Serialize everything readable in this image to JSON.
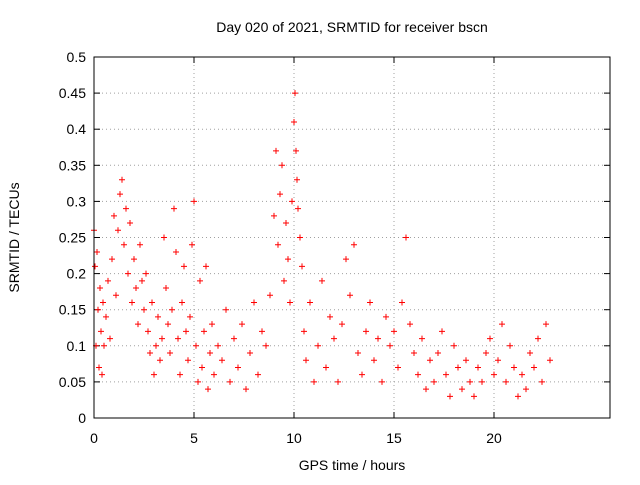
{
  "chart_data": {
    "type": "scatter",
    "title": "Day 020 of 2021, SRMTID for receiver bscn",
    "xlabel": "GPS time / hours",
    "ylabel": "SRMTID / TECUs",
    "xlim": [
      0,
      25.8
    ],
    "ylim": [
      0,
      0.5
    ],
    "x_ticks": [
      0,
      5,
      10,
      15,
      20
    ],
    "x_tick_labels": [
      "0",
      "5",
      "10",
      "15",
      "20"
    ],
    "y_ticks": [
      0,
      0.05,
      0.1,
      0.15,
      0.2,
      0.25,
      0.3,
      0.35,
      0.4,
      0.45,
      0.5
    ],
    "y_tick_labels": [
      "0",
      "0.05",
      "0.1",
      "0.15",
      "0.2",
      "0.25",
      "0.3",
      "0.35",
      "0.4",
      "0.45",
      "0.5"
    ],
    "grid": true,
    "marker": "+",
    "color": "#ff0000",
    "series": [
      {
        "name": "SRMTID",
        "x": [
          0.0,
          0.05,
          0.1,
          0.15,
          0.2,
          0.25,
          0.3,
          0.35,
          0.4,
          0.45,
          0.5,
          0.6,
          0.7,
          0.8,
          0.9,
          1.0,
          1.1,
          1.2,
          1.3,
          1.4,
          1.5,
          1.6,
          1.7,
          1.8,
          1.9,
          2.0,
          2.1,
          2.2,
          2.3,
          2.4,
          2.5,
          2.6,
          2.7,
          2.8,
          2.9,
          3.0,
          3.1,
          3.2,
          3.3,
          3.4,
          3.5,
          3.6,
          3.7,
          3.8,
          3.9,
          4.0,
          4.1,
          4.2,
          4.3,
          4.4,
          4.5,
          4.6,
          4.7,
          4.8,
          4.9,
          5.0,
          5.1,
          5.2,
          5.3,
          5.4,
          5.5,
          5.6,
          5.7,
          5.8,
          5.9,
          6.0,
          6.2,
          6.4,
          6.6,
          6.8,
          7.0,
          7.2,
          7.4,
          7.6,
          7.8,
          8.0,
          8.2,
          8.4,
          8.6,
          8.8,
          9.0,
          9.1,
          9.2,
          9.3,
          9.4,
          9.5,
          9.6,
          9.7,
          9.8,
          9.9,
          10.0,
          10.05,
          10.1,
          10.15,
          10.2,
          10.3,
          10.4,
          10.5,
          10.6,
          10.8,
          11.0,
          11.2,
          11.4,
          11.6,
          11.8,
          12.0,
          12.2,
          12.4,
          12.6,
          12.8,
          13.0,
          13.2,
          13.4,
          13.6,
          13.8,
          14.0,
          14.2,
          14.4,
          14.6,
          14.8,
          15.0,
          15.2,
          15.4,
          15.6,
          15.8,
          16.0,
          16.2,
          16.4,
          16.6,
          16.8,
          17.0,
          17.2,
          17.4,
          17.6,
          17.8,
          18.0,
          18.2,
          18.4,
          18.6,
          18.8,
          19.0,
          19.2,
          19.4,
          19.6,
          19.8,
          20.0,
          20.2,
          20.4,
          20.6,
          20.8,
          21.0,
          21.2,
          21.4,
          21.6,
          21.8,
          22.0,
          22.2,
          22.4,
          22.6,
          22.8
        ],
        "y": [
          0.26,
          0.21,
          0.1,
          0.23,
          0.15,
          0.07,
          0.18,
          0.12,
          0.06,
          0.16,
          0.1,
          0.14,
          0.19,
          0.11,
          0.22,
          0.28,
          0.17,
          0.26,
          0.31,
          0.33,
          0.24,
          0.29,
          0.2,
          0.27,
          0.16,
          0.22,
          0.18,
          0.13,
          0.24,
          0.19,
          0.15,
          0.2,
          0.12,
          0.09,
          0.16,
          0.06,
          0.1,
          0.14,
          0.08,
          0.11,
          0.25,
          0.18,
          0.13,
          0.09,
          0.15,
          0.29,
          0.23,
          0.11,
          0.06,
          0.16,
          0.21,
          0.12,
          0.08,
          0.14,
          0.24,
          0.3,
          0.1,
          0.05,
          0.19,
          0.07,
          0.12,
          0.21,
          0.04,
          0.09,
          0.13,
          0.06,
          0.1,
          0.08,
          0.15,
          0.05,
          0.11,
          0.07,
          0.13,
          0.04,
          0.09,
          0.16,
          0.06,
          0.12,
          0.1,
          0.17,
          0.28,
          0.37,
          0.24,
          0.31,
          0.35,
          0.19,
          0.27,
          0.22,
          0.16,
          0.3,
          0.41,
          0.45,
          0.37,
          0.33,
          0.29,
          0.25,
          0.21,
          0.12,
          0.08,
          0.16,
          0.05,
          0.1,
          0.19,
          0.07,
          0.14,
          0.11,
          0.05,
          0.13,
          0.22,
          0.17,
          0.24,
          0.09,
          0.06,
          0.12,
          0.16,
          0.08,
          0.11,
          0.05,
          0.14,
          0.1,
          0.12,
          0.07,
          0.16,
          0.25,
          0.13,
          0.09,
          0.06,
          0.11,
          0.04,
          0.08,
          0.05,
          0.09,
          0.12,
          0.06,
          0.03,
          0.1,
          0.07,
          0.04,
          0.08,
          0.05,
          0.03,
          0.07,
          0.05,
          0.09,
          0.11,
          0.06,
          0.08,
          0.13,
          0.05,
          0.1,
          0.07,
          0.03,
          0.06,
          0.04,
          0.09,
          0.07,
          0.11,
          0.05,
          0.13,
          0.08
        ]
      }
    ]
  }
}
